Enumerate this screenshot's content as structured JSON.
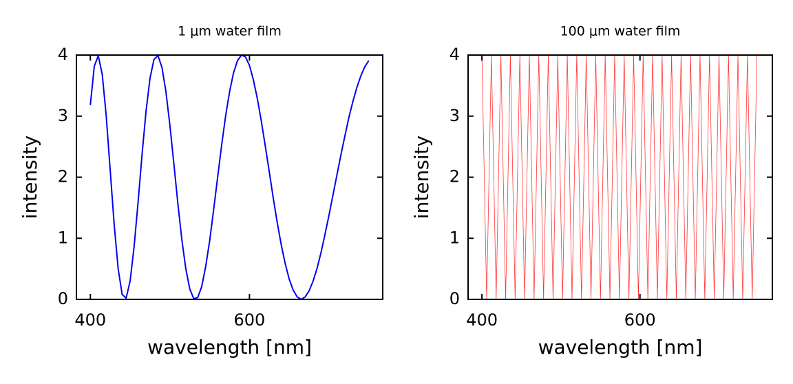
{
  "chart_data": [
    {
      "type": "line",
      "title": "1 μm water film",
      "xlabel": "wavelength [nm]",
      "ylabel": "intensity",
      "x": [
        400,
        405,
        410,
        415,
        420,
        425,
        430,
        435,
        440,
        445,
        450,
        455,
        460,
        465,
        470,
        475,
        480,
        485,
        490,
        495,
        500,
        505,
        510,
        515,
        520,
        525,
        530,
        535,
        540,
        545,
        550,
        555,
        560,
        565,
        570,
        575,
        580,
        585,
        590,
        595,
        600,
        605,
        610,
        615,
        620,
        625,
        630,
        635,
        640,
        645,
        650,
        655,
        660,
        665,
        670,
        675,
        680,
        685,
        690,
        695,
        700,
        705,
        710,
        715,
        720,
        725,
        730,
        735,
        740,
        745,
        750
      ],
      "series": [
        {
          "color": "#0000ee",
          "values": [
            3.18,
            3.82,
            3.99,
            3.68,
            3.0,
            2.11,
            1.22,
            0.5,
            0.08,
            0.02,
            0.3,
            0.86,
            1.59,
            2.37,
            3.08,
            3.62,
            3.93,
            3.99,
            3.8,
            3.4,
            2.85,
            2.22,
            1.57,
            0.98,
            0.5,
            0.17,
            0.01,
            0.03,
            0.21,
            0.54,
            0.96,
            1.47,
            2.0,
            2.52,
            3.0,
            3.4,
            3.71,
            3.91,
            4.0,
            3.97,
            3.83,
            3.59,
            3.28,
            2.91,
            2.5,
            2.08,
            1.65,
            1.25,
            0.89,
            0.58,
            0.33,
            0.15,
            0.04,
            0,
            0.04,
            0.14,
            0.3,
            0.51,
            0.77,
            1.07,
            1.38,
            1.71,
            2.04,
            2.37,
            2.68,
            2.98,
            3.24,
            3.47,
            3.66,
            3.81,
            3.91
          ]
        }
      ],
      "xlim": [
        382.5,
        767.5
      ],
      "ylim": [
        0,
        4
      ],
      "xticks": [
        400,
        600
      ],
      "yticks": [
        0,
        1,
        2,
        3,
        4
      ]
    },
    {
      "type": "line",
      "title": "100 μm water film",
      "xlabel": "wavelength [nm]",
      "ylabel": "intensity",
      "x": [
        400,
        406,
        412,
        418,
        424,
        430,
        436,
        442,
        448,
        454,
        460,
        466,
        472,
        478,
        484,
        490,
        496,
        502,
        508,
        514,
        520,
        526,
        532,
        538,
        544,
        550,
        556,
        562,
        568,
        574,
        580,
        586,
        592,
        598,
        604,
        610,
        616,
        622,
        628,
        634,
        640,
        646,
        652,
        658,
        664,
        670,
        676,
        682,
        688,
        694,
        700,
        706,
        712,
        718,
        724,
        730,
        736,
        742,
        748
      ],
      "series": [
        {
          "color": "#ff0000",
          "values": [
            4,
            0,
            4,
            0,
            4,
            0,
            4,
            0,
            4,
            0,
            4,
            0,
            4,
            0,
            4,
            0,
            4,
            0,
            4,
            0,
            4,
            0,
            4,
            0,
            4,
            0,
            4,
            0,
            4,
            0,
            4,
            0,
            4,
            0,
            4,
            0,
            4,
            0,
            4,
            0,
            4,
            0,
            4,
            0,
            4,
            0,
            4,
            0,
            4,
            0,
            4,
            0,
            4,
            0,
            4,
            0,
            4,
            0,
            4
          ]
        }
      ],
      "xlim": [
        382.5,
        767.5
      ],
      "ylim": [
        0,
        4
      ],
      "xticks": [
        400,
        600
      ],
      "yticks": [
        0,
        1,
        2,
        3,
        4
      ]
    }
  ]
}
